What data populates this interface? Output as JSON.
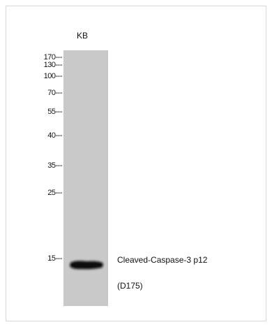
{
  "lane": {
    "label": "KB"
  },
  "markers": [
    "170---",
    "130---",
    "100---",
    "70---",
    "55---",
    "40---",
    "35---",
    "25---",
    "15---"
  ],
  "band": {
    "label": "Cleaved-Caspase-3 p12",
    "sublabel": "(D175)"
  }
}
